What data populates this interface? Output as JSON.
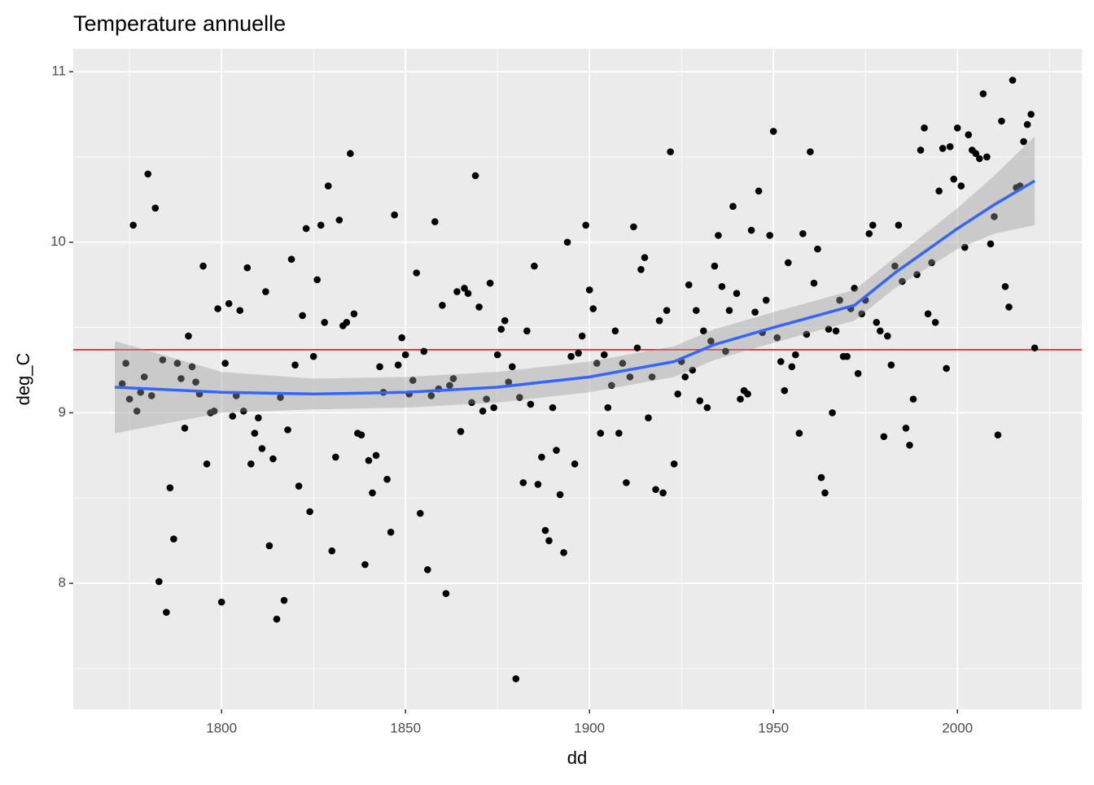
{
  "chart_data": {
    "type": "scatter",
    "title": "Temperature annuelle",
    "x_label": "dd",
    "y_label": "deg_C",
    "x": [
      1773,
      1774,
      1775,
      1776,
      1777,
      1778,
      1779,
      1780,
      1781,
      1782,
      1783,
      1784,
      1785,
      1786,
      1787,
      1788,
      1789,
      1790,
      1791,
      1792,
      1793,
      1794,
      1795,
      1796,
      1797,
      1798,
      1799,
      1800,
      1801,
      1802,
      1803,
      1804,
      1805,
      1806,
      1807,
      1808,
      1809,
      1810,
      1811,
      1812,
      1813,
      1814,
      1815,
      1816,
      1817,
      1818,
      1819,
      1820,
      1821,
      1822,
      1823,
      1824,
      1825,
      1826,
      1827,
      1828,
      1829,
      1830,
      1831,
      1832,
      1833,
      1834,
      1835,
      1836,
      1837,
      1838,
      1839,
      1840,
      1841,
      1842,
      1843,
      1844,
      1845,
      1846,
      1847,
      1848,
      1849,
      1850,
      1851,
      1852,
      1853,
      1854,
      1855,
      1856,
      1857,
      1858,
      1859,
      1860,
      1861,
      1862,
      1863,
      1864,
      1865,
      1866,
      1867,
      1868,
      1869,
      1870,
      1871,
      1872,
      1873,
      1874,
      1875,
      1876,
      1877,
      1878,
      1879,
      1880,
      1881,
      1882,
      1883,
      1884,
      1885,
      1886,
      1887,
      1888,
      1889,
      1890,
      1891,
      1892,
      1893,
      1894,
      1895,
      1896,
      1897,
      1898,
      1899,
      1900,
      1901,
      1902,
      1903,
      1904,
      1905,
      1906,
      1907,
      1908,
      1909,
      1910,
      1911,
      1912,
      1913,
      1914,
      1915,
      1916,
      1917,
      1918,
      1919,
      1920,
      1921,
      1922,
      1923,
      1924,
      1925,
      1926,
      1927,
      1928,
      1929,
      1930,
      1931,
      1932,
      1933,
      1934,
      1935,
      1936,
      1937,
      1938,
      1939,
      1940,
      1941,
      1942,
      1943,
      1944,
      1945,
      1946,
      1947,
      1948,
      1949,
      1950,
      1951,
      1952,
      1953,
      1954,
      1955,
      1956,
      1957,
      1958,
      1959,
      1960,
      1961,
      1962,
      1963,
      1964,
      1965,
      1966,
      1967,
      1968,
      1969,
      1970,
      1971,
      1972,
      1973,
      1974,
      1975,
      1976,
      1977,
      1978,
      1979,
      1980,
      1981,
      1982,
      1983,
      1984,
      1985,
      1986,
      1987,
      1988,
      1989,
      1990,
      1991,
      1992,
      1993,
      1994,
      1995,
      1996,
      1997,
      1998,
      1999,
      2000,
      2001,
      2002,
      2003,
      2004,
      2005,
      2006,
      2007,
      2008,
      2009,
      2010,
      2011,
      2012,
      2013,
      2014,
      2015,
      2016,
      2017,
      2018,
      2019,
      2020,
      2021
    ],
    "series": [
      {
        "color": "#000000",
        "values": [
          9.17,
          9.29,
          9.08,
          10.1,
          9.01,
          9.12,
          9.21,
          10.4,
          9.1,
          10.2,
          8.01,
          9.31,
          7.83,
          8.56,
          8.26,
          9.29,
          9.2,
          8.91,
          9.45,
          9.27,
          9.18,
          9.11,
          9.86,
          8.7,
          9.0,
          9.01,
          9.61,
          7.89,
          9.29,
          9.64,
          8.98,
          9.1,
          9.6,
          9.01,
          9.85,
          8.7,
          8.88,
          8.97,
          8.79,
          9.71,
          8.22,
          8.73,
          7.79,
          9.09,
          7.9,
          8.9,
          9.9,
          9.28,
          8.57,
          9.57,
          10.08,
          8.42,
          9.33,
          9.78,
          10.1,
          9.53,
          10.33,
          8.19,
          8.74,
          10.13,
          9.51,
          9.53,
          10.52,
          9.58,
          8.88,
          8.87,
          8.11,
          8.72,
          8.53,
          8.75,
          9.27,
          9.12,
          8.61,
          8.3,
          10.16,
          9.28,
          9.44,
          9.34,
          9.11,
          9.19,
          9.82,
          8.41,
          9.36,
          8.08,
          9.1,
          10.12,
          9.14,
          9.63,
          7.94,
          9.16,
          9.2,
          9.71,
          8.89,
          9.73,
          9.7,
          9.06,
          10.39,
          9.62,
          9.01,
          9.08,
          9.76,
          9.03,
          9.34,
          9.49,
          9.54,
          9.18,
          9.27,
          7.44,
          9.09,
          8.59,
          9.48,
          9.05,
          9.86,
          8.58,
          8.74,
          8.31,
          8.25,
          9.03,
          8.78,
          8.52,
          8.18,
          10.0,
          9.33,
          8.7,
          9.35,
          9.45,
          10.1,
          9.72,
          9.61,
          9.29,
          8.88,
          9.34,
          9.03,
          9.16,
          9.48,
          8.88,
          9.29,
          8.59,
          9.21,
          10.09,
          9.38,
          9.84,
          9.91,
          8.97,
          9.21,
          8.55,
          9.54,
          8.53,
          9.6,
          10.53,
          8.7,
          9.11,
          9.3,
          9.21,
          9.75,
          9.25,
          9.6,
          9.07,
          9.48,
          9.03,
          9.42,
          9.86,
          10.04,
          9.74,
          9.36,
          9.6,
          10.21,
          9.7,
          9.08,
          9.13,
          9.11,
          10.07,
          9.59,
          10.3,
          9.47,
          9.66,
          10.04,
          10.65,
          9.44,
          9.3,
          9.13,
          9.88,
          9.27,
          9.34,
          8.88,
          10.05,
          9.46,
          10.53,
          9.76,
          9.96,
          8.62,
          8.53,
          9.49,
          9.0,
          9.48,
          9.66,
          9.33,
          9.33,
          9.61,
          9.73,
          9.23,
          9.58,
          9.66,
          10.05,
          10.1,
          9.53,
          9.48,
          8.86,
          9.45,
          9.28,
          9.86,
          10.1,
          9.77,
          8.91,
          8.81,
          9.08,
          9.81,
          10.54,
          10.67,
          9.58,
          9.88,
          9.53,
          10.3,
          10.55,
          9.26,
          10.56,
          10.37,
          10.67,
          10.33,
          9.97,
          10.63,
          10.54,
          10.52,
          10.49,
          10.87,
          10.5,
          9.99,
          10.15,
          8.87,
          10.71,
          9.74,
          9.62,
          10.95,
          10.32,
          10.33,
          10.59,
          10.69,
          10.75,
          9.38
        ]
      }
    ],
    "smooth": {
      "color": "#3366ff",
      "band_color": "#999999",
      "x": [
        1771,
        1800,
        1825,
        1850,
        1875,
        1900,
        1923,
        1934,
        1950,
        1972,
        1983,
        2000,
        2010,
        2021
      ],
      "y": [
        9.15,
        9.12,
        9.11,
        9.12,
        9.15,
        9.21,
        9.3,
        9.4,
        9.5,
        9.63,
        9.82,
        10.08,
        10.22,
        10.36
      ],
      "lower": [
        8.88,
        9.0,
        9.02,
        9.03,
        9.06,
        9.12,
        9.21,
        9.31,
        9.41,
        9.54,
        9.73,
        9.96,
        10.05,
        10.1
      ],
      "upper": [
        9.42,
        9.24,
        9.2,
        9.21,
        9.24,
        9.3,
        9.39,
        9.49,
        9.59,
        9.72,
        9.91,
        10.2,
        10.39,
        10.62
      ]
    },
    "hline": {
      "value": 9.37,
      "color": "#ff0000"
    },
    "xlim": [
      1759.7,
      2033.8
    ],
    "ylim": [
      7.261,
      11.134
    ],
    "xticks": [
      1800,
      1850,
      1900,
      1950,
      2000
    ],
    "yticks": [
      8,
      9,
      10,
      11
    ],
    "x_minor_grid": [
      1775,
      1825,
      1875,
      1925,
      1975,
      2025
    ],
    "y_minor_grid": [
      7.5,
      8.5,
      9.5,
      10.5
    ],
    "grid": true
  }
}
